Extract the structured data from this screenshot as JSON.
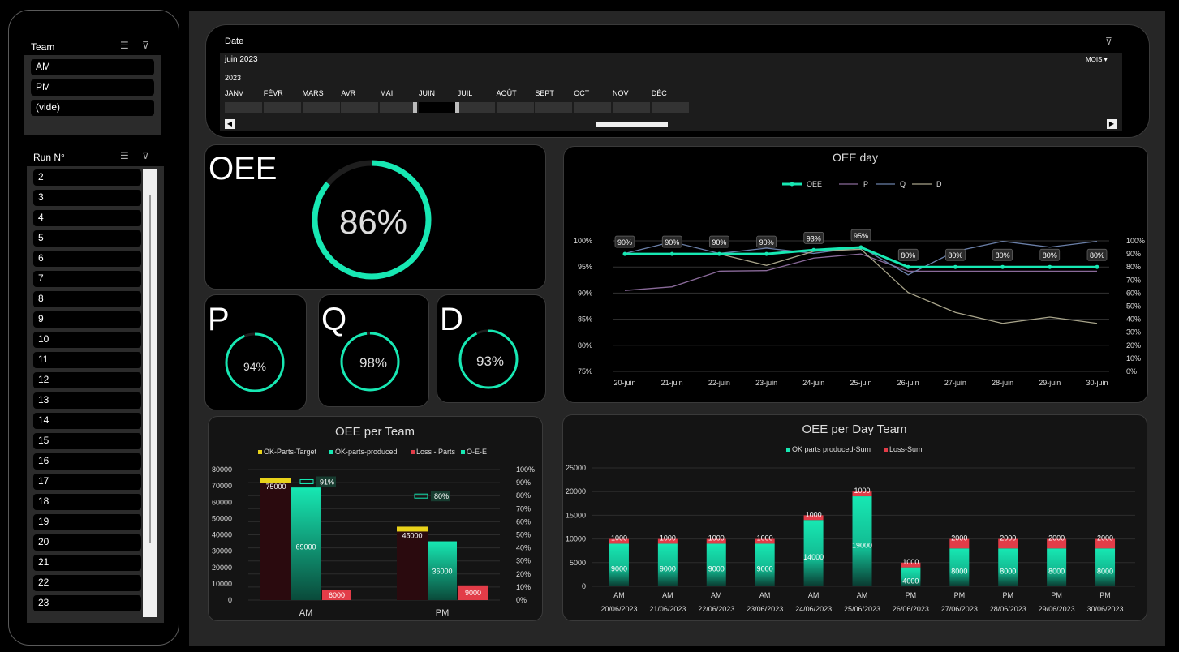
{
  "team_slicer": {
    "title": "Team",
    "items": [
      "AM",
      "PM",
      "(vide)"
    ]
  },
  "run_slicer": {
    "title": "Run N°",
    "items": [
      "2",
      "3",
      "4",
      "5",
      "6",
      "7",
      "8",
      "9",
      "10",
      "11",
      "12",
      "13",
      "14",
      "15",
      "16",
      "17",
      "18",
      "19",
      "20",
      "21",
      "22",
      "23"
    ]
  },
  "timeline": {
    "title": "Date",
    "period_label": "juin 2023",
    "year": "2023",
    "level": "MOIS",
    "months": [
      "JANV",
      "FÉVR",
      "MARS",
      "AVR",
      "MAI",
      "JUIN",
      "JUIL",
      "AOÛT",
      "SEPT",
      "OCT",
      "NOV",
      "DÉC"
    ],
    "selected_month": "JUIN"
  },
  "kpis": {
    "oee": {
      "label": "OEE",
      "value": 0.86,
      "text": "86%"
    },
    "p": {
      "label": "P",
      "value": 0.94,
      "text": "94%"
    },
    "q": {
      "label": "Q",
      "value": 0.98,
      "text": "98%"
    },
    "d": {
      "label": "D",
      "value": 0.93,
      "text": "93%"
    }
  },
  "colors": {
    "accent": "#17e8b3",
    "accent_dark": "#0a8f6d",
    "loss": "#e23c48",
    "target": "#e8d21a",
    "ring_track": "#1e1e1e"
  },
  "chart_data": [
    {
      "type": "line",
      "title": "OEE day",
      "categories": [
        "20-juin",
        "21-juin",
        "22-juin",
        "23-juin",
        "24-juin",
        "25-juin",
        "26-juin",
        "27-juin",
        "28-juin",
        "29-juin",
        "30-juin"
      ],
      "series": [
        {
          "name": "OEE",
          "axis": "right",
          "values": [
            0.9,
            0.9,
            0.9,
            0.9,
            0.93,
            0.95,
            0.8,
            0.8,
            0.8,
            0.8,
            0.8
          ],
          "labels": [
            "90%",
            "90%",
            "90%",
            "90%",
            "93%",
            "95%",
            "80%",
            "80%",
            "80%",
            "80%",
            "80%"
          ],
          "color": "#17e8b3"
        },
        {
          "name": "P",
          "axis": "left",
          "values": [
            0.905,
            0.912,
            0.942,
            0.943,
            0.967,
            0.975,
            0.942,
            0.942,
            0.942,
            0.942,
            0.942
          ],
          "color": "#8a6a9a"
        },
        {
          "name": "Q",
          "axis": "left",
          "values": [
            0.976,
            0.998,
            0.976,
            0.986,
            0.976,
            0.988,
            0.935,
            0.98,
            0.999,
            0.988,
            0.999
          ],
          "color": "#6a7fa8"
        },
        {
          "name": "D",
          "axis": "left",
          "values": [
            0.975,
            0.975,
            0.975,
            0.953,
            0.98,
            0.984,
            0.901,
            0.863,
            0.842,
            0.854,
            0.842
          ],
          "color": "#a8a48a"
        }
      ],
      "left_axis": {
        "ticks": [
          "75%",
          "80%",
          "85%",
          "90%",
          "95%",
          "100%"
        ],
        "min": 0.75,
        "max": 1.0
      },
      "right_axis": {
        "ticks": [
          "0%",
          "10%",
          "20%",
          "30%",
          "40%",
          "50%",
          "60%",
          "70%",
          "80%",
          "90%",
          "100%"
        ],
        "min": 0,
        "max": 1.0
      },
      "legend": "top"
    },
    {
      "type": "bar",
      "title": "OEE per Team",
      "categories": [
        "AM",
        "PM"
      ],
      "series": [
        {
          "name": "OK-Parts-Target",
          "values": [
            75000,
            45000
          ],
          "color": "#e8d21a"
        },
        {
          "name": "OK-parts-produced",
          "values": [
            69000,
            36000
          ],
          "color": "#17e8b3"
        },
        {
          "name": "Loss - Parts",
          "values": [
            6000,
            9000
          ],
          "color": "#e23c48"
        },
        {
          "name": "O-E-E",
          "axis": "right",
          "values": [
            0.91,
            0.8
          ],
          "labels": [
            "91%",
            "80%"
          ],
          "color": "#17e8b3"
        }
      ],
      "left_axis": {
        "ticks": [
          "0",
          "10000",
          "20000",
          "30000",
          "40000",
          "50000",
          "60000",
          "70000",
          "80000"
        ],
        "min": 0,
        "max": 80000
      },
      "right_axis": {
        "ticks": [
          "0%",
          "10%",
          "20%",
          "30%",
          "40%",
          "50%",
          "60%",
          "70%",
          "80%",
          "90%",
          "100%"
        ],
        "min": 0,
        "max": 1.0
      },
      "legend": "top"
    },
    {
      "type": "bar",
      "stacked": true,
      "title": "OEE per Day Team",
      "categories": [
        "20/06/2023",
        "21/06/2023",
        "22/06/2023",
        "23/06/2023",
        "24/06/2023",
        "25/06/2023",
        "26/06/2023",
        "27/06/2023",
        "28/06/2023",
        "29/06/2023",
        "30/06/2023"
      ],
      "team_labels": [
        "AM",
        "AM",
        "AM",
        "AM",
        "AM",
        "AM",
        "PM",
        "PM",
        "PM",
        "PM",
        "PM"
      ],
      "series": [
        {
          "name": "OK parts produced-Sum",
          "values": [
            9000,
            9000,
            9000,
            9000,
            14000,
            19000,
            4000,
            8000,
            8000,
            8000,
            8000
          ],
          "color": "#17e8b3"
        },
        {
          "name": "Loss-Sum",
          "values": [
            1000,
            1000,
            1000,
            1000,
            1000,
            1000,
            1000,
            2000,
            2000,
            2000,
            2000
          ],
          "color": "#e23c48"
        }
      ],
      "left_axis": {
        "ticks": [
          "0",
          "5000",
          "10000",
          "15000",
          "20000",
          "25000"
        ],
        "min": 0,
        "max": 25000
      },
      "legend": "top"
    }
  ]
}
